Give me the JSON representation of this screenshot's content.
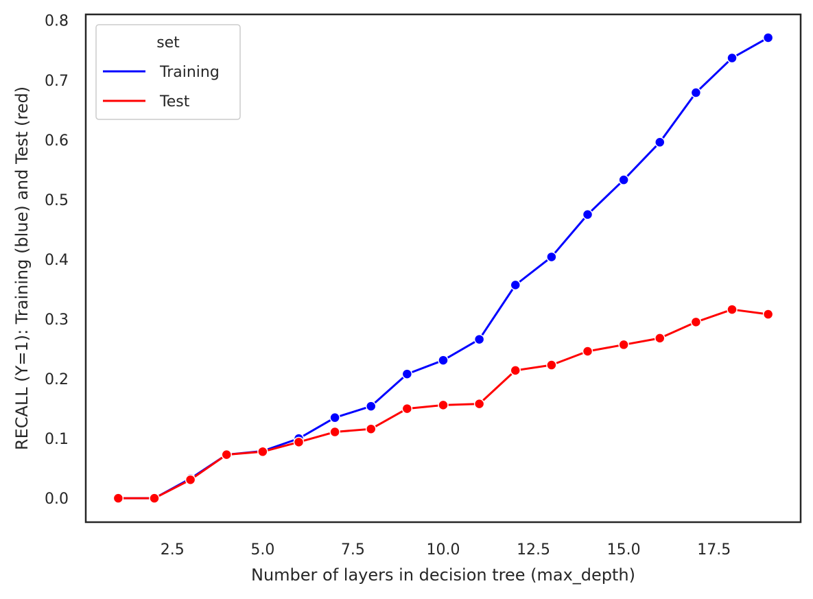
{
  "chart_data": {
    "type": "line",
    "xlabel": "Number of layers in decision tree (max_depth)",
    "ylabel": "RECALL (Y=1): Training (blue) and Test (red)",
    "xlim": [
      0.1,
      19.9
    ],
    "ylim": [
      -0.04,
      0.81
    ],
    "xticks": [
      2.5,
      5.0,
      7.5,
      10.0,
      12.5,
      15.0,
      17.5
    ],
    "xtick_labels": [
      "2.5",
      "5.0",
      "7.5",
      "10.0",
      "12.5",
      "15.0",
      "17.5"
    ],
    "yticks": [
      0.0,
      0.1,
      0.2,
      0.3,
      0.4,
      0.5,
      0.6,
      0.7,
      0.8
    ],
    "ytick_labels": [
      "0.0",
      "0.1",
      "0.2",
      "0.3",
      "0.4",
      "0.5",
      "0.6",
      "0.7",
      "0.8"
    ],
    "grid": false,
    "legend": {
      "title": "set",
      "placement": "top-left",
      "entries": [
        "Training",
        "Test"
      ]
    },
    "x": [
      1,
      2,
      3,
      4,
      5,
      6,
      7,
      8,
      9,
      10,
      11,
      12,
      13,
      14,
      15,
      16,
      17,
      18,
      19
    ],
    "series": [
      {
        "name": "Training",
        "color": "#0000ff",
        "values": [
          0.0,
          0.0,
          0.033,
          0.073,
          0.079,
          0.1,
          0.135,
          0.154,
          0.208,
          0.231,
          0.266,
          0.357,
          0.404,
          0.475,
          0.533,
          0.596,
          0.679,
          0.737,
          0.771
        ]
      },
      {
        "name": "Test",
        "color": "#ff0000",
        "values": [
          0.0,
          0.0,
          0.031,
          0.073,
          0.078,
          0.094,
          0.111,
          0.116,
          0.15,
          0.156,
          0.158,
          0.214,
          0.223,
          0.246,
          0.257,
          0.268,
          0.295,
          0.316,
          0.308
        ]
      }
    ]
  }
}
